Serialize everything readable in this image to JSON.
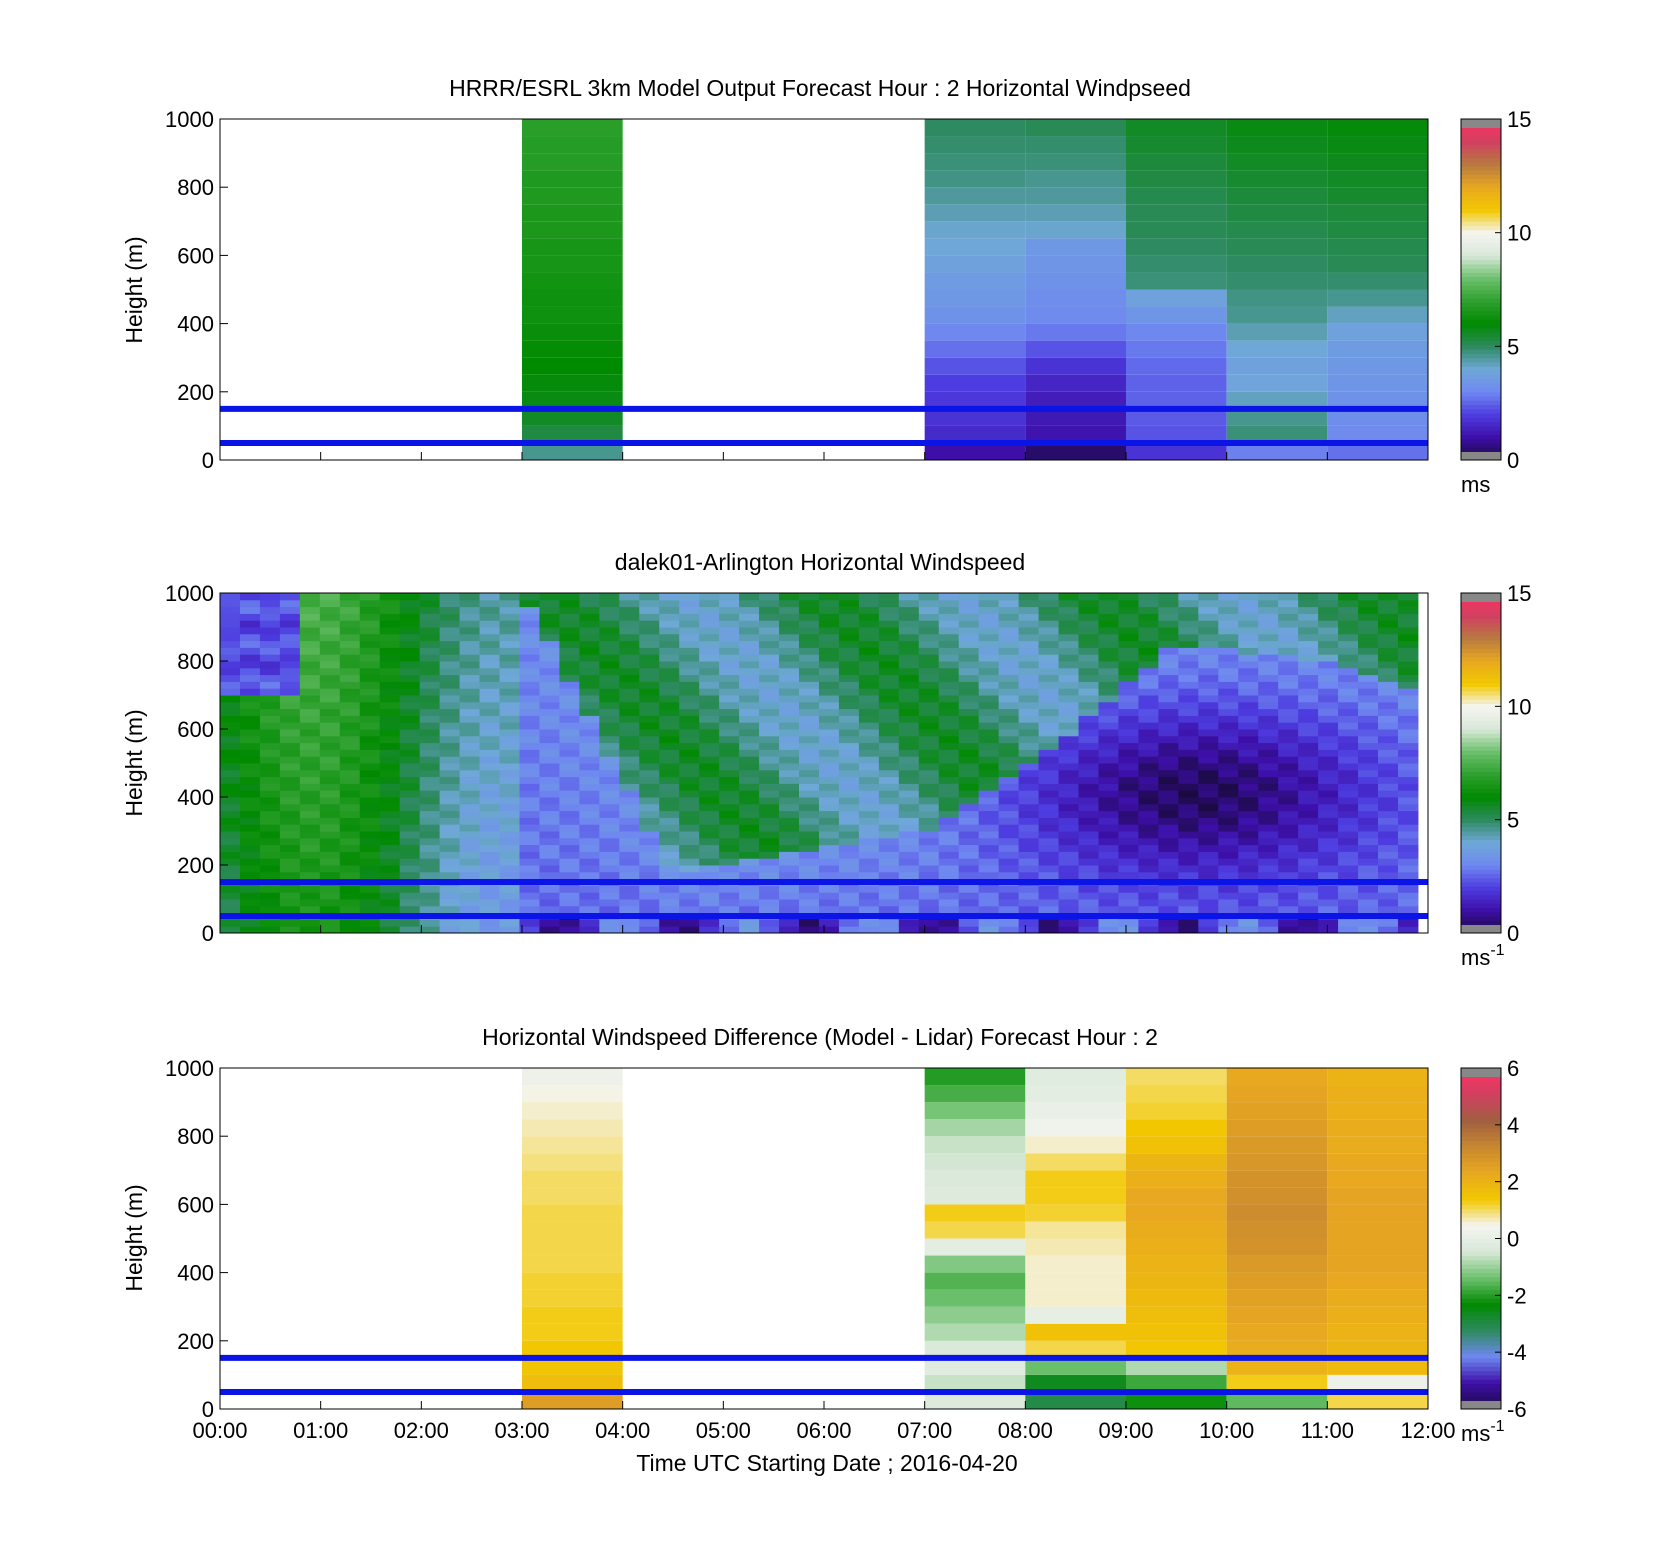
{
  "chart_data": [
    {
      "type": "heatmap",
      "title": "HRRR/ESRL 3km Model Output   Forecast Hour : 2 Horizontal Windpseed",
      "ylabel": "Height (m)",
      "xlabel": "",
      "xlim": [
        0,
        12
      ],
      "ylim": [
        0,
        1000
      ],
      "yticks": [
        "0",
        "200",
        "400",
        "600",
        "800",
        "1000"
      ],
      "colorbar": {
        "ticks": [
          "0",
          "5",
          "10",
          "15"
        ],
        "min": 0,
        "max": 15,
        "unit": "ms",
        "unit_sup": ""
      },
      "levels_m": [
        25,
        75,
        125,
        175,
        225,
        275,
        325,
        375,
        425,
        475,
        525,
        575,
        625,
        675,
        725,
        775,
        825,
        875,
        925,
        975
      ],
      "columns": [
        {
          "hour": 3,
          "values": [
            4.6,
            5.3,
            5.6,
            5.8,
            5.9,
            6.0,
            6.1,
            6.2,
            6.3,
            6.3,
            6.4,
            6.5,
            6.5,
            6.6,
            6.6,
            6.7,
            6.7,
            6.8,
            6.8,
            6.9
          ]
        },
        {
          "hour": 7,
          "values": [
            1.0,
            1.6,
            1.8,
            1.9,
            2.0,
            2.3,
            2.7,
            3.0,
            3.3,
            3.5,
            3.6,
            3.8,
            4.0,
            4.1,
            4.3,
            4.5,
            4.7,
            4.8,
            4.9,
            5.0
          ]
        },
        {
          "hour": 8,
          "values": [
            0.4,
            1.1,
            1.2,
            1.3,
            1.5,
            1.8,
            2.3,
            2.8,
            3.1,
            3.2,
            3.3,
            3.4,
            3.5,
            4.1,
            4.3,
            4.5,
            4.6,
            4.8,
            4.9,
            5.1
          ]
        },
        {
          "hour": 9,
          "values": [
            1.8,
            2.3,
            2.4,
            2.5,
            2.5,
            2.6,
            2.8,
            3.0,
            3.4,
            3.8,
            4.8,
            4.9,
            5.0,
            5.1,
            5.1,
            5.2,
            5.3,
            5.4,
            5.5,
            5.6
          ]
        },
        {
          "hour": 10,
          "values": [
            2.9,
            4.8,
            4.6,
            4.2,
            3.9,
            3.8,
            4.0,
            4.3,
            4.6,
            4.7,
            4.9,
            5.0,
            5.1,
            5.2,
            5.3,
            5.4,
            5.5,
            5.6,
            5.7,
            5.8
          ]
        },
        {
          "hour": 11,
          "values": [
            2.7,
            3.1,
            3.2,
            3.3,
            3.4,
            3.5,
            3.6,
            3.8,
            4.2,
            4.6,
            4.9,
            5.1,
            5.2,
            5.3,
            5.4,
            5.5,
            5.6,
            5.7,
            5.8,
            5.9
          ]
        }
      ],
      "reference_lines_m": [
        50,
        150
      ]
    },
    {
      "type": "heatmap",
      "title": "dalek01-Arlington  Horizontal Windspeed",
      "ylabel": "Height (m)",
      "xlabel": "",
      "xlim": [
        0,
        12
      ],
      "ylim": [
        0,
        1000
      ],
      "yticks": [
        "0",
        "200",
        "400",
        "600",
        "800",
        "1000"
      ],
      "colorbar": {
        "ticks": [
          "0",
          "5",
          "10",
          "15"
        ],
        "min": 0,
        "max": 15,
        "unit": "ms",
        "unit_sup": "-1"
      },
      "data_end_hour": 11.9,
      "description_profile": {
        "low_jet_top_m": [
          [
            0,
            1000
          ],
          [
            3.0,
            1000
          ],
          [
            4.5,
            180
          ],
          [
            7.0,
            300
          ],
          [
            8.5,
            600
          ],
          [
            9.5,
            850
          ],
          [
            11.0,
            800
          ],
          [
            11.9,
            700
          ]
        ],
        "min_core_height_m": 420,
        "min_core_hour": 9.7
      },
      "reference_lines_m": [
        50,
        150
      ]
    },
    {
      "type": "heatmap",
      "title": "Horizontal Windspeed Difference (Model - Lidar) Forecast Hour : 2",
      "ylabel": "Height (m)",
      "xlabel": "Time UTC  Starting Date ; 2016-04-20",
      "xlim": [
        0,
        12
      ],
      "ylim": [
        0,
        1000
      ],
      "xticks": [
        "00:00",
        "01:00",
        "02:00",
        "03:00",
        "04:00",
        "05:00",
        "06:00",
        "07:00",
        "08:00",
        "09:00",
        "10:00",
        "11:00",
        "12:00"
      ],
      "yticks": [
        "0",
        "200",
        "400",
        "600",
        "800",
        "1000"
      ],
      "colorbar": {
        "ticks": [
          "-6",
          "-4",
          "-2",
          "0",
          "2",
          "4",
          "6"
        ],
        "min": -6,
        "max": 6,
        "unit": "ms",
        "unit_sup": "-1"
      },
      "levels_m": [
        25,
        75,
        125,
        175,
        225,
        275,
        325,
        375,
        425,
        475,
        525,
        575,
        625,
        675,
        725,
        775,
        825,
        875,
        925,
        975
      ],
      "columns": [
        {
          "hour": 3,
          "values": [
            2.6,
            1.7,
            1.5,
            1.4,
            1.3,
            1.3,
            1.2,
            1.2,
            1.1,
            1.1,
            1.1,
            1.1,
            1.0,
            1.0,
            0.9,
            0.8,
            0.7,
            0.6,
            0.5,
            0.2
          ]
        },
        {
          "hour": 7,
          "values": [
            -0.3,
            -0.6,
            -0.2,
            -0.4,
            -0.8,
            -1.1,
            -1.4,
            -1.6,
            -1.2,
            -0.1,
            1.1,
            1.3,
            -0.3,
            -0.4,
            -0.5,
            -0.6,
            -0.9,
            -1.3,
            -1.7,
            -2.0
          ]
        },
        {
          "hour": 8,
          "values": [
            -3.0,
            -2.6,
            -1.4,
            1.1,
            1.6,
            0.0,
            0.6,
            0.6,
            0.6,
            0.7,
            0.8,
            1.2,
            1.3,
            1.3,
            1.0,
            0.6,
            0.3,
            0.1,
            -0.1,
            -0.2
          ]
        },
        {
          "hour": 9,
          "values": [
            -2.2,
            -1.8,
            -0.8,
            1.4,
            1.6,
            1.7,
            1.8,
            1.9,
            2.0,
            2.1,
            2.2,
            2.3,
            2.3,
            2.1,
            1.9,
            1.6,
            1.4,
            1.2,
            1.1,
            1.0
          ]
        },
        {
          "hour": 10,
          "values": [
            -1.5,
            1.3,
            2.0,
            2.2,
            2.3,
            2.4,
            2.5,
            2.6,
            2.7,
            2.9,
            3.0,
            3.1,
            3.0,
            2.9,
            2.8,
            2.7,
            2.6,
            2.5,
            2.4,
            2.3
          ]
        },
        {
          "hour": 11,
          "values": [
            1.1,
            0.2,
            1.8,
            1.9,
            2.0,
            2.1,
            2.2,
            2.3,
            2.4,
            2.4,
            2.4,
            2.4,
            2.4,
            2.3,
            2.3,
            2.2,
            2.2,
            2.1,
            2.1,
            2.0
          ]
        }
      ],
      "reference_lines_m": [
        50,
        150
      ]
    }
  ],
  "colors": {
    "reference_line": "#0a14e6",
    "no_data_gray": "#888888",
    "speed_colormap": [
      "#888888",
      "#1a0a40",
      "#3d0fa8",
      "#4d3ce0",
      "#6f88f0",
      "#6fa8d8",
      "#2e8a60",
      "#008a00",
      "#2ea02e",
      "#6cc06c",
      "#d8e8d8",
      "#f5f5f0",
      "#f2c800",
      "#e8a820",
      "#b87a40",
      "#d04060",
      "#ff3060",
      "#888888"
    ],
    "diff_colormap": [
      "#888888",
      "#1a0a40",
      "#3d0fa8",
      "#6f88f0",
      "#2e8a60",
      "#008a00",
      "#6cc06c",
      "#d8e8d8",
      "#f5f5f0",
      "#f2c800",
      "#e8a820",
      "#c88830",
      "#a06040",
      "#d04060",
      "#ff3060",
      "#888888"
    ]
  }
}
